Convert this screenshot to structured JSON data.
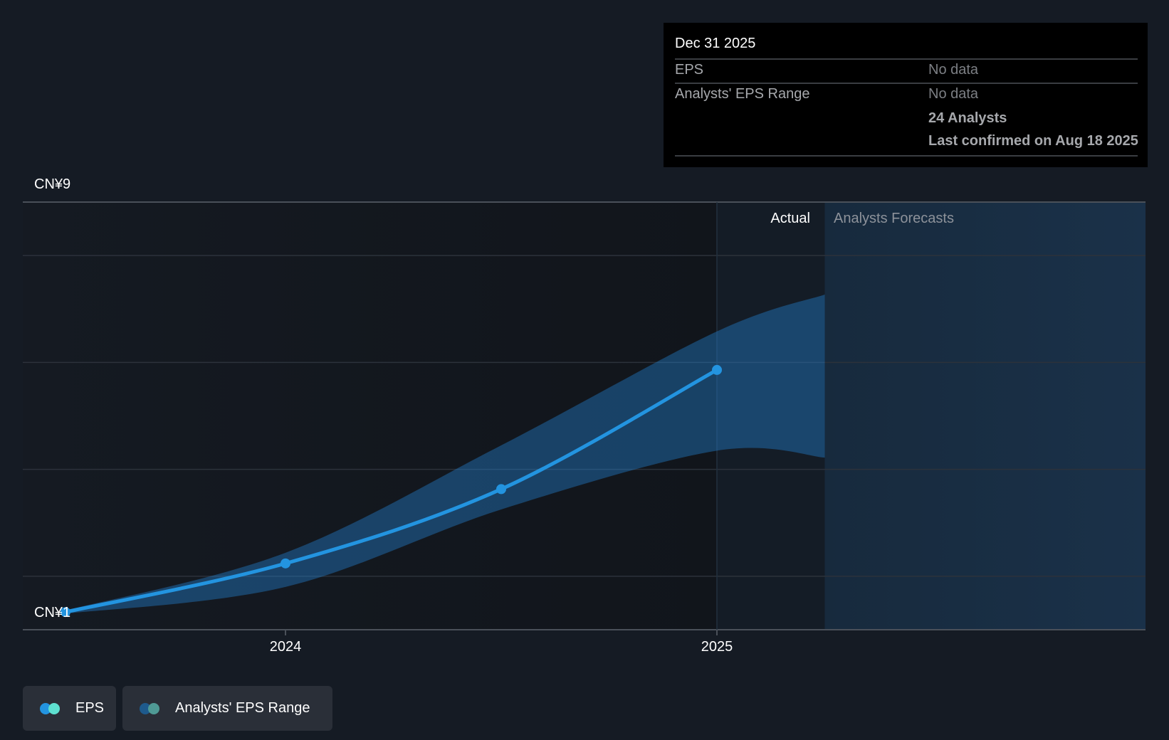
{
  "tooltip": {
    "date": "Dec 31 2025",
    "rows": [
      {
        "label": "EPS",
        "value": "No data"
      },
      {
        "label": "Analysts' EPS Range",
        "value": "No data"
      }
    ],
    "analysts": "24 Analysts",
    "confirmed": "Last confirmed on Aug 18 2025"
  },
  "legend": [
    {
      "label": "EPS",
      "colors": [
        "#2394e0",
        "#5ee0d0"
      ]
    },
    {
      "label": "Analysts' EPS Range",
      "colors": [
        "#1e5a8c",
        "#4f9a95"
      ]
    }
  ],
  "colors": {
    "eps_line": "#2394e0",
    "band": "#1f5f95",
    "forecast_bg": "#182c40"
  },
  "chart_data": {
    "type": "line",
    "title": "",
    "xlabel": "",
    "ylabel": "",
    "y_tick_labels": [
      "CN¥9",
      "CN¥1"
    ],
    "ylim": [
      1,
      9
    ],
    "xlim": [
      2023.4,
      2025.25
    ],
    "x_tick_labels": [
      {
        "label": "2024",
        "x": 2024.0
      },
      {
        "label": "2025",
        "x": 2025.0
      }
    ],
    "region_labels": {
      "actual": "Actual",
      "forecast": "Analysts Forecasts"
    },
    "forecast_start": 2025.0,
    "forecast_band_start": 2025.0,
    "series": [
      {
        "name": "EPS",
        "x": [
          2023.49,
          2024.0,
          2024.5,
          2025.0
        ],
        "values": [
          1.33,
          2.24,
          3.63,
          5.86
        ]
      },
      {
        "name": "Analysts' EPS Range",
        "x": [
          2023.49,
          2024.0,
          2024.5,
          2025.0,
          2025.25
        ],
        "upper": [
          1.36,
          2.44,
          4.45,
          6.58,
          7.27
        ],
        "lower": [
          1.3,
          1.8,
          3.25,
          4.35,
          4.22
        ]
      }
    ],
    "grid": true
  }
}
